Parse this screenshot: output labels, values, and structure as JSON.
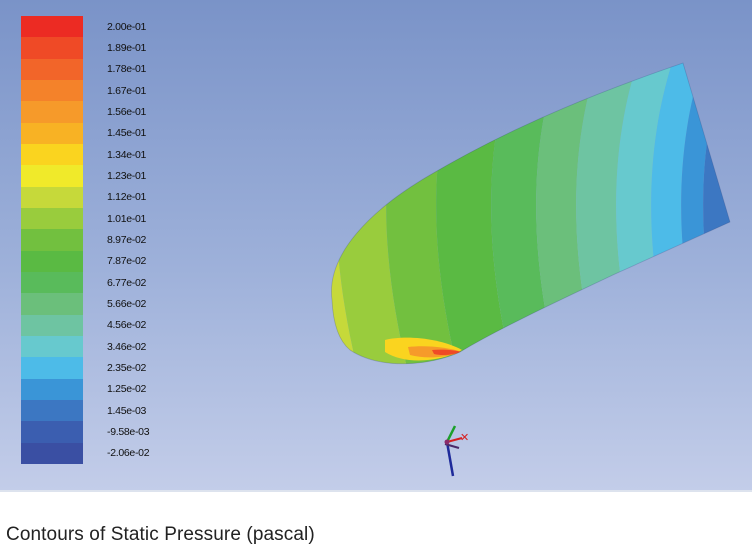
{
  "caption": "Contours of Static Pressure (pascal)",
  "legend": {
    "labels": [
      "2.00e-01",
      "1.89e-01",
      "1.78e-01",
      "1.67e-01",
      "1.56e-01",
      "1.45e-01",
      "1.34e-01",
      "1.23e-01",
      "1.12e-01",
      "1.01e-01",
      "8.97e-02",
      "7.87e-02",
      "6.77e-02",
      "5.66e-02",
      "4.56e-02",
      "3.46e-02",
      "2.35e-02",
      "1.25e-02",
      "1.45e-03",
      "-9.58e-03",
      "-2.06e-02"
    ],
    "colors": [
      "#ec2b23",
      "#ef4a26",
      "#f26529",
      "#f4822a",
      "#f69a2a",
      "#f8b224",
      "#fad41f",
      "#f0ea2a",
      "#c6d93a",
      "#99cc3d",
      "#72c03f",
      "#5aba43",
      "#59bb5b",
      "#6bbf7b",
      "#6ec4a2",
      "#67c9ce",
      "#4dbbe8",
      "#3a95d7",
      "#3c77c2",
      "#3b5eb0",
      "#3a4fa3"
    ]
  },
  "axis_triad": {
    "x_color": "#d62020",
    "y_color": "#1ca02a",
    "z_color": "#1e2a9a"
  },
  "colors": {
    "viewport_top": "#7a93c8",
    "viewport_bottom": "#c3cde9"
  }
}
